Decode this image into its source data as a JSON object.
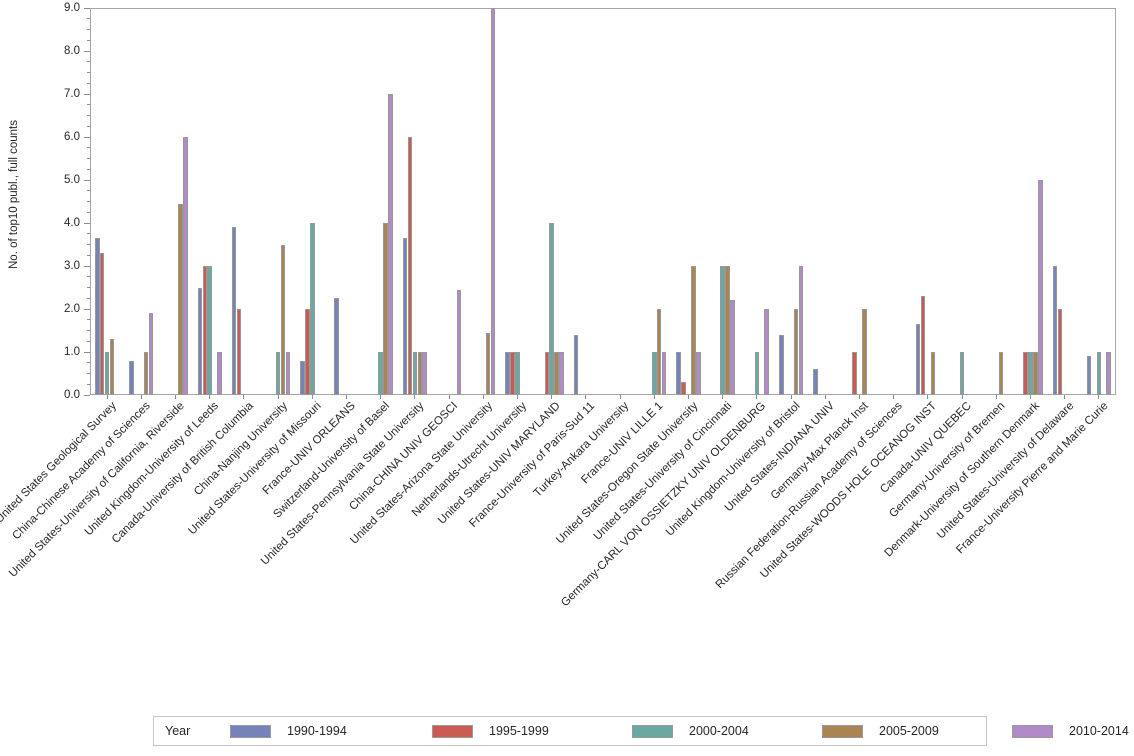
{
  "chart_data": {
    "type": "bar",
    "title": "",
    "xlabel": "",
    "ylabel": "No. of top10 publ., full counts",
    "ylim": [
      0,
      9
    ],
    "ytick_step": 1.0,
    "ytick_labels": [
      "0.0",
      "1.0",
      "2.0",
      "3.0",
      "4.0",
      "5.0",
      "6.0",
      "7.0",
      "8.0",
      "9.0"
    ],
    "minor_tick_interval": 0.25,
    "grid": false,
    "legend_position": "bottom",
    "legend_title": "Year",
    "categories": [
      "United States-United States Geological Survey",
      "China-Chinese Academy of Sciences",
      "United States-University of California, Riverside",
      "United Kingdom-University of Leeds",
      "Canada-University of British Columbia",
      "China-Nanjing University",
      "United States-University of Missouri",
      "France-UNIV ORLEANS",
      "Switzerland-University of Basel",
      "United States-Pennsylvania State University",
      "China-CHINA UNIV GEOSCI",
      "United States-Arizona State University",
      "Netherlands-Utrecht University",
      "United States-UNIV MARYLAND",
      "France-University of Paris-Sud 11",
      "Turkey-Ankara University",
      "France-UNIV LILLE 1",
      "United States-Oregon State University",
      "United States-University of Cincinnati",
      "Germany-CARL VON OSSIETZKY UNIV OLDENBURG",
      "United Kingdom-University of Bristol",
      "United States-INDIANA UNIV",
      "Germany-Max Planck Inst",
      "Russian Federation-Russian Academy of Sciences",
      "United States-WOODS HOLE OCEANOG INST",
      "Canada-UNIV QUEBEC",
      "Germany-University of Bremen",
      "Denmark-University of Southern Denmark",
      "United States-University of Delaware",
      "France-University Pierre and Marie Curie"
    ],
    "series": [
      {
        "name": "1990-1994",
        "color": "#7583b8",
        "values": [
          3.65,
          0.8,
          0,
          2.5,
          3.9,
          0,
          0.8,
          2.25,
          0,
          3.65,
          0,
          0,
          1.0,
          0,
          1.4,
          0,
          0,
          1.0,
          0,
          0,
          1.4,
          0.6,
          0,
          0,
          1.65,
          0,
          0,
          0,
          3.0,
          0.9
        ]
      },
      {
        "name": "1995-1999",
        "color": "#cb5a52",
        "values": [
          3.3,
          0,
          0,
          3.0,
          2.0,
          0,
          2.0,
          0,
          0,
          6.0,
          0,
          0,
          1.0,
          1.0,
          0,
          0,
          0,
          0.3,
          0,
          0,
          0,
          0,
          1.0,
          0,
          2.3,
          0,
          0,
          1.0,
          2.0,
          0
        ]
      },
      {
        "name": "2000-2004",
        "color": "#6aa9a1",
        "values": [
          1.0,
          0,
          0,
          3.0,
          0,
          1.0,
          4.0,
          0,
          1.0,
          1.0,
          0,
          0,
          1.0,
          4.0,
          0,
          0,
          1.0,
          0,
          3.0,
          1.0,
          0,
          0,
          0,
          0,
          0,
          1.0,
          0,
          1.0,
          0,
          1.0
        ]
      },
      {
        "name": "2005-2009",
        "color": "#aa8452",
        "values": [
          1.3,
          1.0,
          4.45,
          0,
          0,
          3.5,
          0,
          0,
          4.0,
          1.0,
          0,
          1.45,
          0,
          1.0,
          0,
          0,
          2.0,
          3.0,
          3.0,
          0,
          2.0,
          0,
          2.0,
          0,
          1.0,
          0,
          1.0,
          1.0,
          0,
          0
        ]
      },
      {
        "name": "2010-2014",
        "color": "#b18bc8",
        "values": [
          0,
          1.9,
          6.0,
          1.0,
          0,
          1.0,
          0,
          0,
          7.0,
          1.0,
          2.45,
          9.0,
          0,
          1.0,
          0,
          0,
          1.0,
          1.0,
          2.2,
          2.0,
          3.0,
          0,
          0,
          0,
          0,
          0,
          0,
          5.0,
          0,
          1.0
        ]
      }
    ]
  },
  "colors": {
    "axis_line": "#a6a6a6",
    "tick": "#8c8c8c",
    "text": "#262626",
    "bar_border": "#989898",
    "legend_border": "#c6c6c6",
    "background": "#ffffff"
  }
}
